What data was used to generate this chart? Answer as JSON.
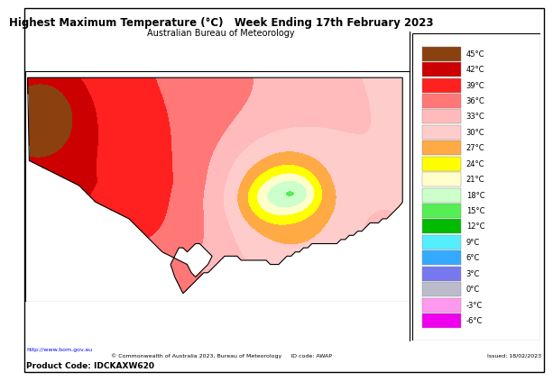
{
  "title": "Highest Maximum Temperature (°C)   Week Ending 17th February 2023",
  "subtitle": "Australian Bureau of Meteorology",
  "footer_left": "http://www.bom.gov.au",
  "footer_center": "© Commonwealth of Australia 2023, Bureau of Meteorology     ID code: AWAP",
  "footer_right": "Issued: 18/02/2023",
  "product_code": "Product Code: IDCKAXW620",
  "legend_labels": [
    "45°C",
    "42°C",
    "39°C",
    "36°C",
    "33°C",
    "30°C",
    "27°C",
    "24°C",
    "21°C",
    "18°C",
    "15°C",
    "12°C",
    "9°C",
    "6°C",
    "3°C",
    "0°C",
    "-3°C",
    "-6°C"
  ],
  "leg_colors": [
    "#8B4010",
    "#CC0000",
    "#FF2020",
    "#FF7777",
    "#FFBBBB",
    "#FFCCCC",
    "#FFAA44",
    "#FFFF00",
    "#FFFFCC",
    "#CCFFCC",
    "#55EE55",
    "#00BB00",
    "#55EEFF",
    "#33AAFF",
    "#7777EE",
    "#BBBBCC",
    "#FFAAEE",
    "#EE00EE"
  ],
  "bg_color": "#FFFFFF",
  "border_color": "#000000"
}
